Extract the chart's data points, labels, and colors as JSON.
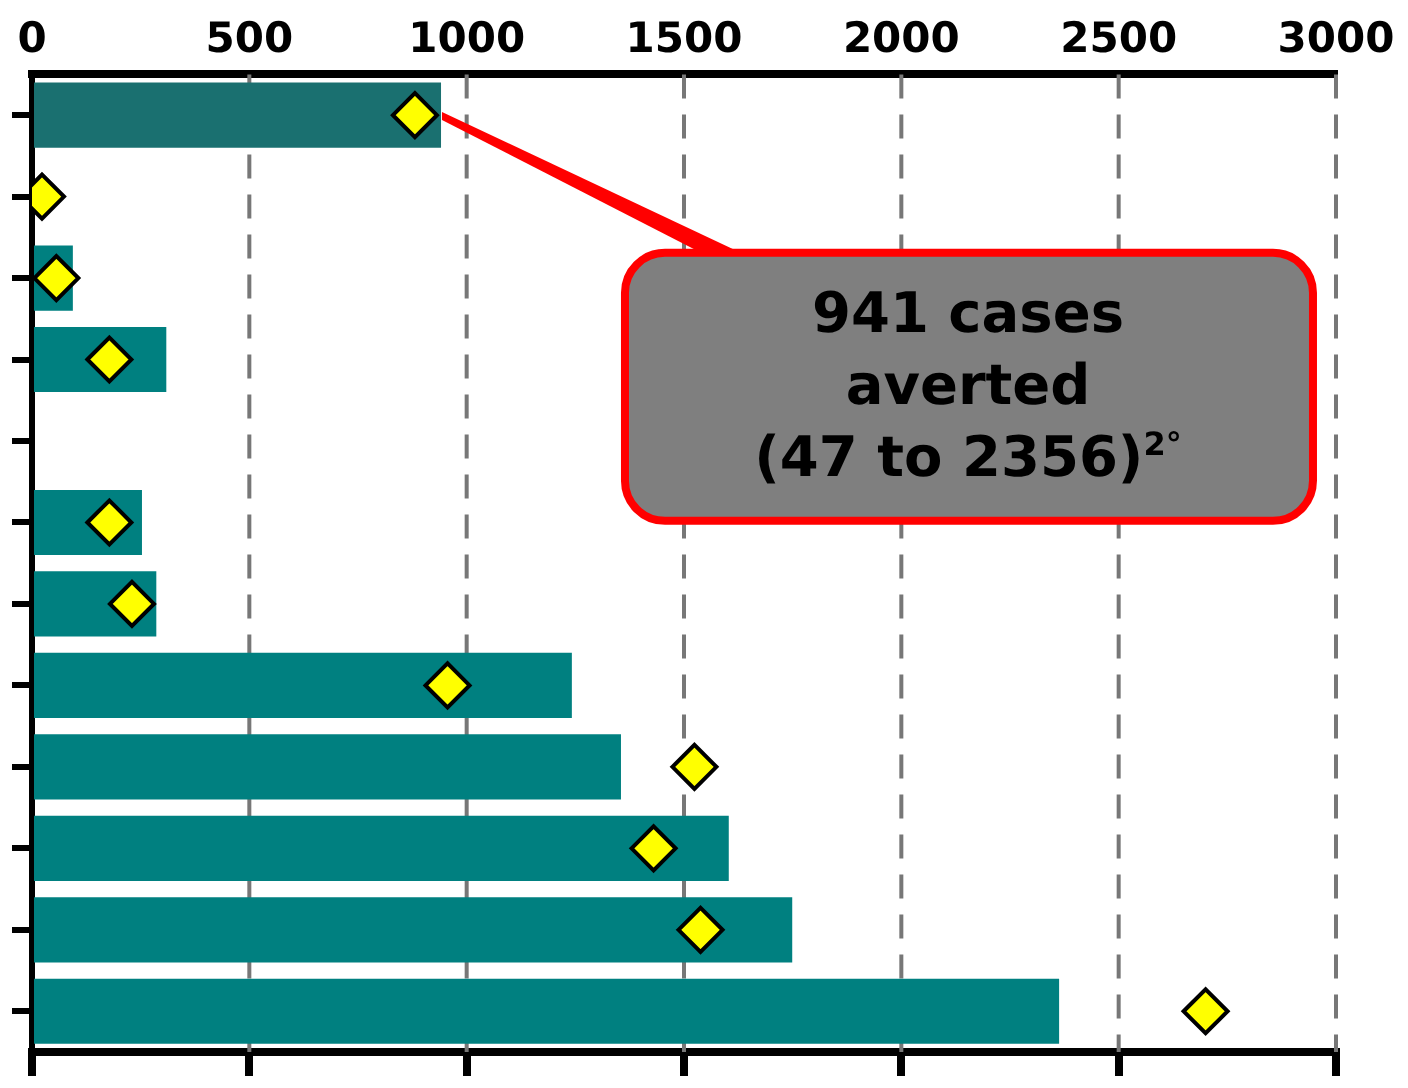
{
  "chart_data": {
    "type": "bar",
    "orientation": "horizontal",
    "categories": [
      null,
      null,
      null,
      null,
      null,
      null,
      null,
      null,
      null,
      null,
      null,
      null
    ],
    "series": [
      {
        "colors": [
          "#1a7070",
          "#008080",
          "#008080",
          "#008080",
          "#008080",
          "#008080",
          "#008080",
          "#008080",
          "#008080",
          "#008080",
          "#008080",
          "#008080"
        ],
        "values": [
          941,
          null,
          94,
          309,
          null,
          253,
          286,
          1242,
          1355,
          1603,
          1749,
          2363
        ]
      },
      {
        "type": "scatter",
        "color": "#ffff00",
        "marker": "diamond",
        "values": [
          881,
          23,
          56,
          178,
          null,
          178,
          230,
          956,
          1524,
          1430,
          1538,
          2700
        ]
      }
    ],
    "xlim": [
      0,
      3000
    ],
    "xticks": [
      0,
      500,
      1000,
      1500,
      2000,
      2500,
      3000
    ],
    "grid": "x",
    "legend": false,
    "annotations": [
      "941 cases averted (47 to 2356)$^{2°}$"
    ]
  }
}
